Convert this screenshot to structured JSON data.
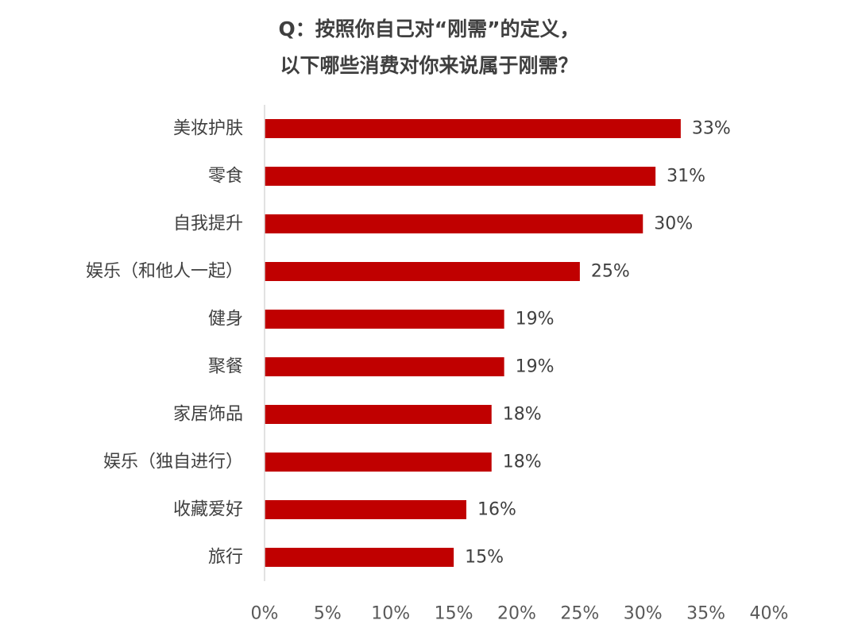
{
  "chart_data": {
    "type": "bar",
    "orientation": "horizontal",
    "title": [
      "Q：按照你自己对“刚需”的定义，",
      "以下哪些消费对你来说属于刚需？"
    ],
    "xlabel": "",
    "ylabel": "",
    "categories": [
      "美妆护肤",
      "零食",
      "自我提升",
      "娱乐（和他人一起）",
      "健身",
      "聚餐",
      "家居饰品",
      "娱乐（独自进行）",
      "收藏爱好",
      "旅行"
    ],
    "values": [
      33,
      31,
      30,
      25,
      19,
      19,
      18,
      18,
      16,
      15
    ],
    "value_labels": [
      "33%",
      "31%",
      "30%",
      "25%",
      "19%",
      "19%",
      "18%",
      "18%",
      "16%",
      "15%"
    ],
    "xlim": [
      0,
      40
    ],
    "xticks": [
      0,
      5,
      10,
      15,
      20,
      25,
      30,
      35,
      40
    ],
    "xtick_labels": [
      "0%",
      "5%",
      "10%",
      "15%",
      "20%",
      "25%",
      "30%",
      "35%",
      "40%"
    ],
    "grid": false,
    "legend": "none",
    "bar_color": "#c00000",
    "axis_color": "#d9d9d9"
  }
}
